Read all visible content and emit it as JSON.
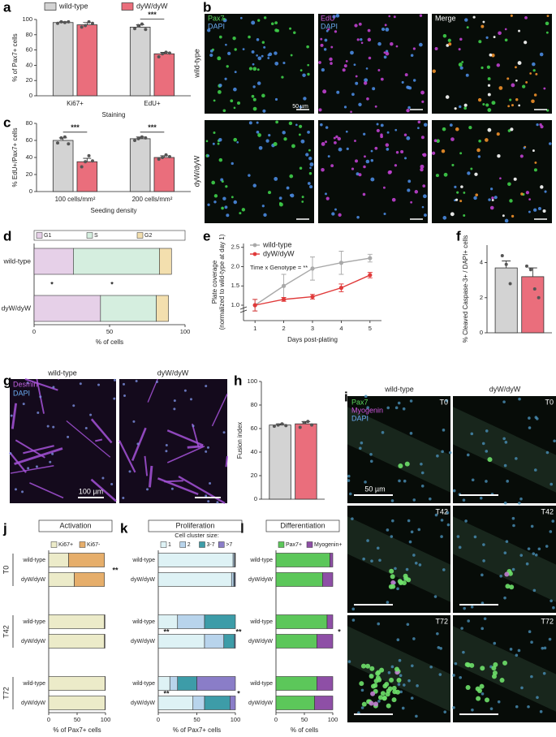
{
  "panel_letters": [
    "a",
    "b",
    "c",
    "d",
    "e",
    "f",
    "g",
    "h",
    "i",
    "j",
    "k",
    "l"
  ],
  "images": {
    "b": {
      "channels": [
        [
          "Pax7",
          "DAPI"
        ],
        [
          "EdU",
          "DAPI"
        ],
        [
          "Merge"
        ]
      ],
      "rows": [
        "wild-type",
        "dyW/dyW"
      ],
      "scale_bar": "50 µm"
    },
    "g": {
      "columns": [
        "wild-type",
        "dyW/dyW"
      ],
      "channels": [
        "Desmin",
        "DAPI"
      ],
      "scale_bar": "100 µm"
    },
    "i": {
      "columns": [
        "wild-type",
        "dyW/dyW"
      ],
      "channels": [
        "Pax7",
        "Myogenin",
        "DAPI"
      ],
      "timepoints": [
        "T0",
        "T42",
        "T72"
      ],
      "scale_bar": "50 µm"
    }
  },
  "chart_data": [
    {
      "type": "bar",
      "categories": [
        "Ki67+",
        "EdU+"
      ],
      "xlabel": "Staining",
      "ylabel": "% of Pax7+ cells",
      "ylim": [
        0,
        100
      ],
      "yticks": [
        0,
        20,
        40,
        60,
        80,
        100
      ],
      "legend": "top",
      "series": [
        {
          "name": "wild-type",
          "color": "#d3d3d3",
          "values": [
            96,
            90
          ],
          "errors": [
            1,
            3
          ],
          "points": [
            [
              95,
              97,
              96,
              97
            ],
            [
              88,
              92,
              94,
              87
            ]
          ]
        },
        {
          "name": "dyW/dyW",
          "color": "#ea6e7c",
          "values": [
            93,
            55
          ],
          "errors": [
            3,
            2
          ],
          "points": [
            [
              90,
              92,
              97,
              95
            ],
            [
              51,
              55,
              57,
              56
            ]
          ]
        }
      ],
      "significance": [
        null,
        "***"
      ]
    },
    {
      "type": "bar",
      "categories": [
        "100 cells/mm²",
        "200 cells/mm²"
      ],
      "xlabel": "Seeding density",
      "ylabel": "% EdU+/Pax7+ cells",
      "ylim": [
        0,
        80
      ],
      "yticks": [
        0,
        20,
        40,
        60,
        80
      ],
      "series": [
        {
          "color": "#d3d3d3",
          "values": [
            60,
            62
          ],
          "errors": [
            3,
            2
          ],
          "points": [
            [
              57,
              63,
              64,
              56
            ],
            [
              60,
              62,
              64,
              63
            ]
          ]
        },
        {
          "color": "#ea6e7c",
          "values": [
            35,
            40
          ],
          "errors": [
            4,
            2
          ],
          "points": [
            [
              29,
              35,
              42,
              36
            ],
            [
              38,
              40,
              43,
              41
            ]
          ]
        }
      ],
      "significance": [
        "***",
        "***"
      ]
    },
    {
      "type": "stackedbar",
      "categories": [
        "wild-type",
        "dyW/dyW"
      ],
      "xlabel": "% of cells",
      "xlim": [
        0,
        100
      ],
      "xticks": [
        0,
        50,
        100
      ],
      "legend": "top",
      "series": [
        {
          "name": "G1",
          "color": "#e6d0e8",
          "values": [
            26,
            44
          ]
        },
        {
          "name": "S",
          "color": "#d5eedf",
          "values": [
            57,
            37
          ]
        },
        {
          "name": "G2",
          "color": "#f3dfae",
          "values": [
            8,
            8
          ]
        }
      ],
      "significance": [
        "*",
        "*"
      ]
    },
    {
      "type": "line",
      "x": [
        1,
        2,
        3,
        4,
        5
      ],
      "xlim": [
        0.6,
        5.4
      ],
      "xticks": [
        1,
        2,
        3,
        4,
        5
      ],
      "xlabel": "Days post-plating",
      "ylabel": [
        "Plate coverage",
        "(normalized to wild-type at day 1)"
      ],
      "ylim": [
        0.6,
        2.6
      ],
      "yticks": [
        {
          "value": 1,
          "label": "1.0"
        },
        {
          "value": 1.5,
          "label": "1.5"
        },
        {
          "value": 2,
          "label": "2.0"
        },
        {
          "value": 2.5,
          "label": "2.5"
        }
      ],
      "legend": "upper left",
      "annotation": "Time x Genotype = **",
      "series": [
        {
          "name": "wild-type",
          "color": "#a9a9a9",
          "values": [
            1.0,
            1.5,
            1.95,
            2.1,
            2.22
          ],
          "errors": [
            0.15,
            0.3,
            0.3,
            0.3,
            0.1
          ]
        },
        {
          "name": "dyW/dyW",
          "color": "#e03a3a",
          "values": [
            1.0,
            1.15,
            1.22,
            1.45,
            1.78
          ],
          "errors": [
            0.15,
            0.05,
            0.06,
            0.1,
            0.07
          ]
        }
      ]
    },
    {
      "type": "bar",
      "ylabel": "% Cleaved Caspase-3+ / DAPI+ cells",
      "ylim": [
        0,
        5
      ],
      "yticks": [
        0,
        2,
        4
      ],
      "series": [
        {
          "color": "#d3d3d3",
          "values": [
            3.7
          ],
          "errors": [
            0.4
          ],
          "points": [
            [
              4.4,
              3.9,
              2.8
            ]
          ]
        },
        {
          "color": "#ea6e7c",
          "values": [
            3.2
          ],
          "errors": [
            0.5
          ],
          "points": [
            [
              3.8,
              3.6,
              2.5,
              2.0
            ]
          ]
        }
      ]
    },
    {
      "type": "bar",
      "ylabel": "Fusion index",
      "ylim": [
        0,
        100
      ],
      "yticks": [
        0,
        20,
        40,
        60,
        80,
        100
      ],
      "series": [
        {
          "color": "#d3d3d3",
          "values": [
            63
          ],
          "errors": [
            1
          ],
          "points": [
            [
              62,
              63,
              64,
              62.5
            ]
          ]
        },
        {
          "color": "#ea6e7c",
          "values": [
            64
          ],
          "errors": [
            2
          ],
          "points": [
            [
              61,
              65,
              66,
              63
            ]
          ]
        }
      ]
    },
    {
      "type": "stackedbar",
      "title": "Activation",
      "groups": [
        "T0",
        "T42",
        "T72"
      ],
      "categories": [
        "wild-type",
        "dyW/dyW",
        "wild-type",
        "dyW/dyW",
        "wild-type",
        "dyW/dyW"
      ],
      "xlabel": "% of Pax7+ cells",
      "xlim": [
        0,
        100
      ],
      "xticks": [
        0,
        50,
        100
      ],
      "legend": "top",
      "series": [
        {
          "name": "Ki67+",
          "color": "#ecebc9",
          "values": [
            35,
            45,
            98,
            98,
            99,
            99
          ]
        },
        {
          "name": "Ki67-",
          "color": "#e6ae6b",
          "values": [
            63,
            53,
            1,
            1,
            0.5,
            0.5
          ]
        }
      ],
      "significance": [
        "**"
      ]
    },
    {
      "type": "stackedbar",
      "title": "Proliferation",
      "legend_title": "Cell cluster size:",
      "categories": [
        "wild-type",
        "dyW/dyW",
        "wild-type",
        "dyW/dyW",
        "wild-type",
        "dyW/dyW"
      ],
      "xlabel": "% of Pax7+ cells",
      "xlim": [
        0,
        100
      ],
      "xticks": [
        0,
        50,
        100
      ],
      "legend": "top",
      "series": [
        {
          "name": "1",
          "color": "#def2f5",
          "values": [
            97,
            95,
            25,
            60,
            15,
            45
          ]
        },
        {
          "name": "2",
          "color": "#b8d4ec",
          "values": [
            2,
            3,
            35,
            25,
            10,
            15
          ]
        },
        {
          "name": "3-7",
          "color": "#3d9ca8",
          "values": [
            0.5,
            1,
            40,
            14,
            25,
            33
          ]
        },
        {
          "name": ">7",
          "color": "#8a7dc8",
          "values": [
            0.5,
            1,
            0,
            1,
            50,
            7
          ]
        }
      ],
      "significance": [
        "**",
        "**",
        "**",
        "*"
      ]
    },
    {
      "type": "stackedbar",
      "title": "Differentiation",
      "categories": [
        "wild-type",
        "dyW/dyW",
        "wild-type",
        "dyW/dyW",
        "wild-type",
        "dyW/dyW"
      ],
      "xlabel": "% of cells",
      "xlim": [
        0,
        100
      ],
      "xticks": [
        0,
        50,
        100
      ],
      "legend": "top",
      "series": [
        {
          "name": "Pax7+",
          "color": "#5cc75a",
          "values": [
            95,
            82,
            90,
            72,
            72,
            68
          ]
        },
        {
          "name": "Myogenin+",
          "color": "#8e4fa6",
          "values": [
            5,
            18,
            10,
            28,
            28,
            32
          ]
        }
      ],
      "significance": [
        "*"
      ]
    }
  ]
}
